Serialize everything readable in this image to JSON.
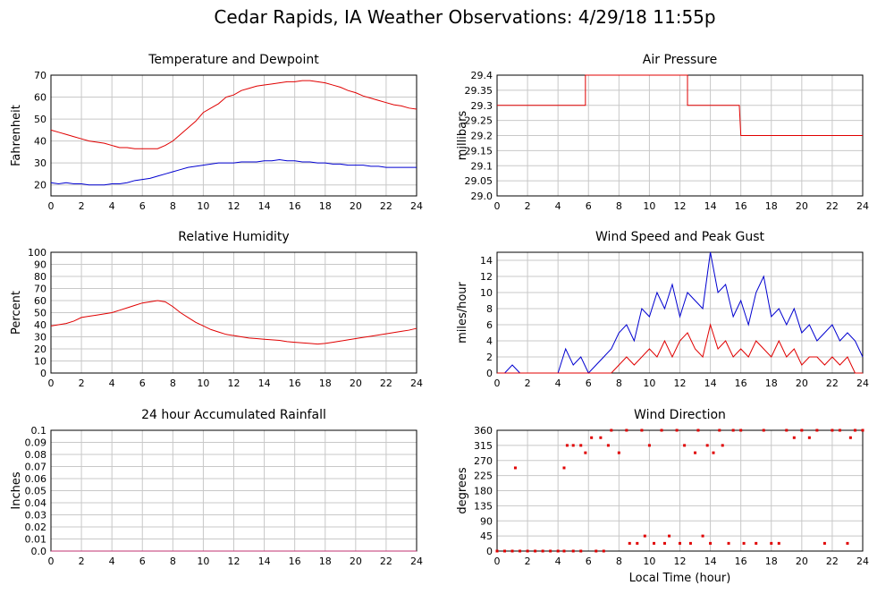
{
  "title": "Cedar Rapids, IA Weather Observations: 4/29/18 11:55p",
  "chart_data": [
    {
      "type": "line",
      "title": "Temperature and Dewpoint",
      "ylabel": "Fahrenheit",
      "grid": true,
      "x": [
        0,
        0.5,
        1,
        1.5,
        2,
        2.5,
        3,
        3.5,
        4,
        4.5,
        5,
        5.5,
        6,
        6.5,
        7,
        7.5,
        8,
        8.5,
        9,
        9.5,
        10,
        10.5,
        11,
        11.5,
        12,
        12.5,
        13,
        13.5,
        14,
        14.5,
        15,
        15.5,
        16,
        16.5,
        17,
        17.5,
        18,
        18.5,
        19,
        19.5,
        20,
        20.5,
        21,
        21.5,
        22,
        22.5,
        23,
        23.5,
        24
      ],
      "series": [
        {
          "color": "#e00000",
          "values": [
            45,
            44,
            43,
            42,
            41,
            40,
            39.5,
            39,
            38,
            37,
            37,
            36.5,
            36.5,
            36.5,
            36.5,
            38,
            40,
            43,
            46,
            49,
            53,
            55,
            57,
            60,
            61,
            63,
            64,
            65,
            65.5,
            66,
            66.5,
            67,
            67,
            67.5,
            67.5,
            67,
            66.5,
            65.5,
            64.5,
            63,
            62,
            60.5,
            59.5,
            58.5,
            57.5,
            56.5,
            56,
            55,
            54.5
          ]
        },
        {
          "color": "#0000d0",
          "values": [
            21,
            20.5,
            21,
            20.5,
            20.5,
            20,
            20,
            20,
            20.5,
            20.5,
            21,
            22,
            22.5,
            23,
            24,
            25,
            26,
            27,
            28,
            28.5,
            29,
            29.5,
            30,
            30,
            30,
            30.5,
            30.5,
            30.5,
            31,
            31,
            31.5,
            31,
            31,
            30.5,
            30.5,
            30,
            30,
            29.5,
            29.5,
            29,
            29,
            29,
            28.5,
            28.5,
            28,
            28,
            28,
            28,
            28
          ]
        }
      ],
      "xlim": [
        0,
        24
      ],
      "xticks": [
        0,
        2,
        4,
        6,
        8,
        10,
        12,
        14,
        16,
        18,
        20,
        22,
        24
      ],
      "ylim": [
        15,
        70
      ],
      "yticks": [
        20,
        30,
        40,
        50,
        60,
        70
      ]
    },
    {
      "type": "line",
      "title": "Air Pressure",
      "ylabel": "millibars",
      "grid": true,
      "x": [
        0,
        5.8,
        5.8,
        12.5,
        12.5,
        15.9,
        16,
        24
      ],
      "series": [
        {
          "color": "#e00000",
          "values": [
            29.3,
            29.3,
            29.4,
            29.4,
            29.3,
            29.3,
            29.2,
            29.2
          ]
        }
      ],
      "xlim": [
        0,
        24
      ],
      "xticks": [
        0,
        2,
        4,
        6,
        8,
        10,
        12,
        14,
        16,
        18,
        20,
        22,
        24
      ],
      "ylim": [
        29.0,
        29.4
      ],
      "yticks": [
        {
          "value": 29.0,
          "label": "29.0"
        },
        29.05,
        29.1,
        29.15,
        29.2,
        29.25,
        29.3,
        29.35,
        29.4
      ]
    },
    {
      "type": "line",
      "title": "Relative Humidity",
      "ylabel": "Percent",
      "grid": true,
      "x": [
        0,
        0.5,
        1,
        1.5,
        2,
        2.5,
        3,
        3.5,
        4,
        4.5,
        5,
        5.5,
        6,
        6.5,
        7,
        7.5,
        8,
        8.5,
        9,
        9.5,
        10,
        10.5,
        11,
        11.5,
        12,
        12.5,
        13,
        13.5,
        14,
        14.5,
        15,
        15.5,
        16,
        16.5,
        17,
        17.5,
        18,
        18.5,
        19,
        19.5,
        20,
        20.5,
        21,
        21.5,
        22,
        22.5,
        23,
        23.5,
        24
      ],
      "series": [
        {
          "color": "#e00000",
          "values": [
            39,
            40,
            41,
            43,
            46,
            47,
            48,
            49,
            50,
            52,
            54,
            56,
            58,
            59,
            60,
            59,
            55,
            50,
            46,
            42,
            39,
            36,
            34,
            32,
            31,
            30,
            29,
            28.5,
            28,
            27.5,
            27,
            26,
            25.5,
            25,
            24.5,
            24,
            24.5,
            25.5,
            26.5,
            27.5,
            28.5,
            29.5,
            30.5,
            31.5,
            32.5,
            33.5,
            34.5,
            35.5,
            37
          ]
        }
      ],
      "xlim": [
        0,
        24
      ],
      "xticks": [
        0,
        2,
        4,
        6,
        8,
        10,
        12,
        14,
        16,
        18,
        20,
        22,
        24
      ],
      "ylim": [
        0,
        100
      ],
      "yticks": [
        0,
        10,
        20,
        30,
        40,
        50,
        60,
        70,
        80,
        90,
        100
      ]
    },
    {
      "type": "line",
      "title": "Wind Speed and Peak Gust",
      "ylabel": "miles/hour",
      "grid": true,
      "x": [
        0,
        0.5,
        1,
        1.5,
        2,
        2.5,
        3,
        3.5,
        4,
        4.5,
        5,
        5.5,
        6,
        6.5,
        7,
        7.5,
        8,
        8.5,
        9,
        9.5,
        10,
        10.5,
        11,
        11.5,
        12,
        12.5,
        13,
        13.5,
        14,
        14.5,
        15,
        15.5,
        16,
        16.5,
        17,
        17.5,
        18,
        18.5,
        19,
        19.5,
        20,
        20.5,
        21,
        21.5,
        22,
        22.5,
        23,
        23.5,
        24
      ],
      "series": [
        {
          "color": "#0000d0",
          "values": [
            0,
            0,
            1,
            0,
            0,
            0,
            0,
            0,
            0,
            3,
            1,
            2,
            0,
            1,
            2,
            3,
            5,
            6,
            4,
            8,
            7,
            10,
            8,
            11,
            7,
            10,
            9,
            8,
            15,
            10,
            11,
            7,
            9,
            6,
            10,
            12,
            7,
            8,
            6,
            8,
            5,
            6,
            4,
            5,
            6,
            4,
            5,
            4,
            2
          ]
        },
        {
          "color": "#e00000",
          "values": [
            0,
            0,
            0,
            0,
            0,
            0,
            0,
            0,
            0,
            0,
            0,
            0,
            0,
            0,
            0,
            0,
            1,
            2,
            1,
            2,
            3,
            2,
            4,
            2,
            4,
            5,
            3,
            2,
            6,
            3,
            4,
            2,
            3,
            2,
            4,
            3,
            2,
            4,
            2,
            3,
            1,
            2,
            2,
            1,
            2,
            1,
            2,
            0,
            0
          ]
        }
      ],
      "xlim": [
        0,
        24
      ],
      "xticks": [
        0,
        2,
        4,
        6,
        8,
        10,
        12,
        14,
        16,
        18,
        20,
        22,
        24
      ],
      "ylim": [
        0,
        15
      ],
      "yticks": [
        0,
        2,
        4,
        6,
        8,
        10,
        12,
        14
      ]
    },
    {
      "type": "line",
      "title": "24 hour Accumulated Rainfall",
      "ylabel": "Inches",
      "grid": true,
      "x": [
        0,
        24
      ],
      "series": [
        {
          "color": "#c03070",
          "values": [
            0,
            0
          ]
        }
      ],
      "xlim": [
        0,
        24
      ],
      "xticks": [
        0,
        2,
        4,
        6,
        8,
        10,
        12,
        14,
        16,
        18,
        20,
        22,
        24
      ],
      "ylim": [
        0,
        0.1
      ],
      "yticks": [
        {
          "value": 0,
          "label": "0.0"
        },
        0.01,
        0.02,
        0.03,
        0.04,
        0.05,
        0.06,
        0.07,
        0.08,
        0.09,
        0.1
      ]
    },
    {
      "type": "scatter",
      "title": "Wind Direction",
      "ylabel": "degrees",
      "xlabel": "Local Time (hour)",
      "grid": true,
      "color": "#e00000",
      "x": [
        0,
        0.5,
        1,
        1.5,
        2,
        2.5,
        3,
        3.5,
        4,
        4.4,
        5,
        5.5,
        6.5,
        7,
        1.2,
        4.4,
        4.6,
        5,
        5.5,
        5.8,
        6.2,
        6.8,
        7.3,
        7.5,
        8,
        8.5,
        8.7,
        9.2,
        9.5,
        9.7,
        10,
        10.3,
        10.8,
        11,
        11.3,
        11.8,
        12,
        12.3,
        12.7,
        13,
        13.2,
        13.5,
        13.8,
        14,
        14.2,
        14.6,
        14.8,
        15.2,
        15.5,
        16,
        16.2,
        17,
        17.5,
        18,
        18.5,
        19,
        19.5,
        20,
        20.5,
        21,
        21.5,
        22,
        22.5,
        23,
        23.2,
        23.5,
        24
      ],
      "values": [
        0,
        0,
        0,
        0,
        0,
        0,
        0,
        0,
        0,
        0,
        0,
        0,
        0,
        0,
        248,
        248,
        315,
        315,
        315,
        293,
        338,
        338,
        315,
        360,
        293,
        360,
        23,
        23,
        360,
        45,
        315,
        23,
        360,
        23,
        45,
        360,
        23,
        315,
        23,
        293,
        360,
        45,
        315,
        23,
        293,
        360,
        315,
        23,
        360,
        360,
        23,
        23,
        360,
        23,
        23,
        360,
        338,
        360,
        338,
        360,
        23,
        360,
        360,
        23,
        338,
        360,
        360
      ],
      "xlim": [
        0,
        24
      ],
      "xticks": [
        0,
        2,
        4,
        6,
        8,
        10,
        12,
        14,
        16,
        18,
        20,
        22,
        24
      ],
      "ylim": [
        0,
        360
      ],
      "yticks": [
        0,
        45,
        90,
        135,
        180,
        225,
        270,
        315,
        360
      ]
    }
  ]
}
